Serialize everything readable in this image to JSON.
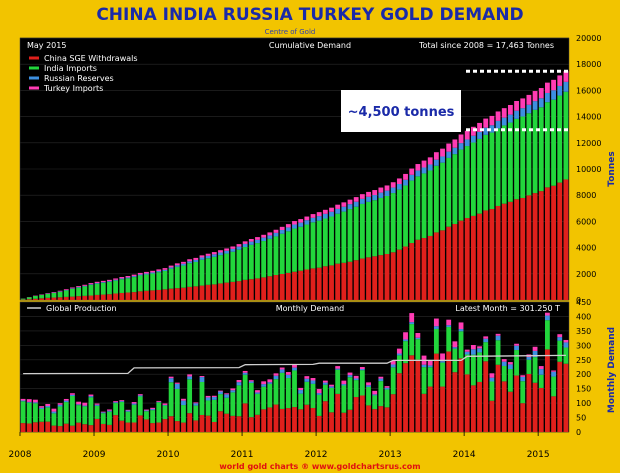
{
  "chart_data": {
    "type": "bar",
    "title": "CHINA INDIA RUSSIA TURKEY GOLD DEMAND",
    "subtitle": "Centre of Gold",
    "footer": "world gold charts ® www.goldchartsrus.com",
    "x_tick_labels": [
      "2008",
      "2009",
      "2010",
      "2011",
      "2012",
      "2013",
      "2014",
      "2015"
    ],
    "x_range": [
      "2008-01",
      "2015-05"
    ],
    "colors": {
      "china": "#e0201c",
      "india": "#22d63c",
      "russia": "#3d8fe0",
      "turkey": "#ff3cb4",
      "global_production": "#cfcfcf",
      "annotation": "#ffffff"
    },
    "upper_panel": {
      "date_label": "May 2015",
      "center_label": "Cumulative Demand",
      "total_label": "Total since 2008 = 17,463 Tonnes",
      "ylabel": "Tonnes",
      "ylim": [
        0,
        20000
      ],
      "y_ticks": [
        "0",
        "2000",
        "4000",
        "6000",
        "8000",
        "10000",
        "12000",
        "14000",
        "16000",
        "18000",
        "20000"
      ],
      "legend": [
        "China SGE Withdrawals",
        "India Imports",
        "Russian Reserves",
        "Turkey Imports"
      ],
      "legend_placement": "top-left",
      "annotation_text": "~4,500 tonnes",
      "annotation_levels": [
        17463,
        13000
      ],
      "series_end_values": {
        "China SGE Withdrawals": 9200,
        "India Imports": 6700,
        "Russian Reserves": 750,
        "Turkey Imports": 813
      },
      "series": [
        {
          "name": "China SGE Withdrawals",
          "annual_monthly_avg": {
            "2008": 30,
            "2009": 40,
            "2010": 55,
            "2011": 80,
            "2012": 90,
            "2013": 190,
            "2014": 175,
            "2015": 210
          }
        },
        {
          "name": "India Imports",
          "annual_monthly_avg": {
            "2008": 65,
            "2009": 45,
            "2010": 80,
            "2011": 80,
            "2012": 75,
            "2013": 70,
            "2014": 70,
            "2015": 75
          }
        },
        {
          "name": "Russian Reserves",
          "annual_monthly_avg": {
            "2008": 4,
            "2009": 3,
            "2010": 12,
            "2011": 8,
            "2012": 6,
            "2013": 7,
            "2014": 14,
            "2015": 14
          }
        },
        {
          "name": "Turkey Imports",
          "annual_monthly_avg": {
            "2008": 8,
            "2009": 4,
            "2010": 6,
            "2011": 8,
            "2012": 11,
            "2013": 25,
            "2014": 12,
            "2015": 8
          }
        }
      ]
    },
    "lower_panel": {
      "legend": [
        "Global Production"
      ],
      "center_label": "Monthly Demand",
      "latest_label": "Latest Month = 301.250 T",
      "ylabel": "Monthly Demand",
      "ylim": [
        0,
        450
      ],
      "y_ticks": [
        "0",
        "50",
        "100",
        "150",
        "200",
        "250",
        "300",
        "350",
        "400",
        "450"
      ],
      "global_production": [
        {
          "x": "2008-01",
          "y": 202
        },
        {
          "x": "2009-06",
          "y": 203
        },
        {
          "x": "2009-07",
          "y": 222
        },
        {
          "x": "2010-12",
          "y": 223
        },
        {
          "x": "2011-01",
          "y": 233
        },
        {
          "x": "2011-12",
          "y": 234
        },
        {
          "x": "2012-01",
          "y": 238
        },
        {
          "x": "2012-12",
          "y": 238
        },
        {
          "x": "2013-01",
          "y": 248
        },
        {
          "x": "2013-12",
          "y": 248
        },
        {
          "x": "2014-01",
          "y": 262
        },
        {
          "x": "2015-05",
          "y": 265
        }
      ]
    }
  }
}
